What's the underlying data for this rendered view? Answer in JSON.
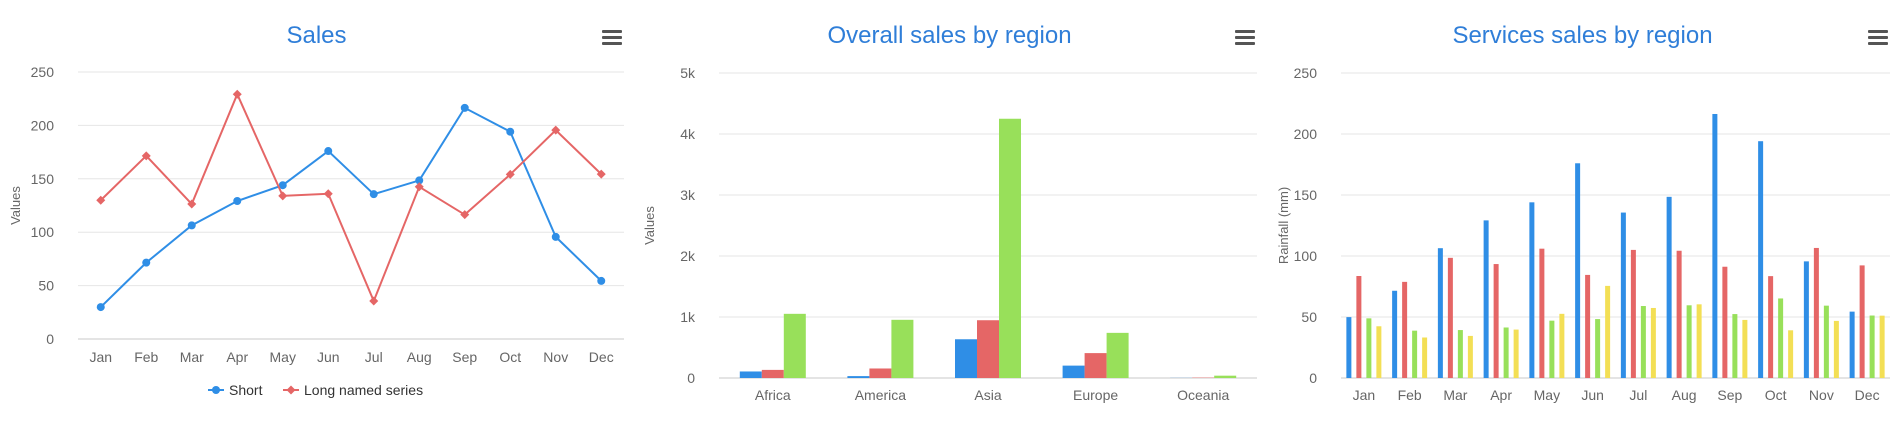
{
  "colors": {
    "blue": "#2f8ee6",
    "red": "#e56666",
    "green": "#98e05a",
    "yellow": "#f3df55",
    "title": "#2f7ed8"
  },
  "chart_data": [
    {
      "type": "line",
      "title": "Sales",
      "ylabel": "Values",
      "ylim": [
        0,
        250
      ],
      "yticks": [
        "0",
        "50",
        "100",
        "150",
        "200",
        "250"
      ],
      "categories": [
        "Jan",
        "Feb",
        "Mar",
        "Apr",
        "May",
        "Jun",
        "Jul",
        "Aug",
        "Sep",
        "Oct",
        "Nov",
        "Dec"
      ],
      "legend": "bottom-center",
      "grid": true,
      "series": [
        {
          "name": "Short",
          "color": "#2f8ee6",
          "marker": "circle",
          "values": [
            29.9,
            71.5,
            106.4,
            129.2,
            144.0,
            176.0,
            135.6,
            148.5,
            216.4,
            194.1,
            95.6,
            54.4
          ]
        },
        {
          "name": "Long named series",
          "color": "#e56666",
          "marker": "diamond",
          "values": [
            129.9,
            171.5,
            126.4,
            229.2,
            134.0,
            136.0,
            35.6,
            142.5,
            116.4,
            154.1,
            195.6,
            154.4
          ]
        }
      ]
    },
    {
      "type": "bar",
      "title": "Overall sales by region",
      "ylabel": "Values",
      "ylim": [
        0,
        5000
      ],
      "yticks": [
        "0",
        "1k",
        "2k",
        "3k",
        "4k",
        "5k"
      ],
      "categories": [
        "Africa",
        "America",
        "Asia",
        "Europe",
        "Oceania"
      ],
      "grid": true,
      "series": [
        {
          "color": "#2f8ee6",
          "values": [
            107,
            31,
            635,
            203,
            2
          ]
        },
        {
          "color": "#e56666",
          "values": [
            133,
            156,
            947,
            408,
            6
          ]
        },
        {
          "color": "#98e05a",
          "values": [
            1052,
            954,
            4250,
            740,
            38
          ]
        }
      ]
    },
    {
      "type": "bar",
      "title": "Services sales by region",
      "ylabel": "Rainfall (mm)",
      "ylim": [
        0,
        250
      ],
      "yticks": [
        "0",
        "50",
        "100",
        "150",
        "200",
        "250"
      ],
      "categories": [
        "Jan",
        "Feb",
        "Mar",
        "Apr",
        "May",
        "Jun",
        "Jul",
        "Aug",
        "Sep",
        "Oct",
        "Nov",
        "Dec"
      ],
      "grid": true,
      "series": [
        {
          "color": "#2f8ee6",
          "values": [
            49.9,
            71.5,
            106.4,
            129.2,
            144.0,
            176.0,
            135.6,
            148.5,
            216.4,
            194.1,
            95.6,
            54.4
          ]
        },
        {
          "color": "#e56666",
          "values": [
            83.6,
            78.8,
            98.5,
            93.4,
            106.0,
            84.5,
            105.0,
            104.3,
            91.2,
            83.5,
            106.6,
            92.3
          ]
        },
        {
          "color": "#98e05a",
          "values": [
            48.9,
            38.8,
            39.3,
            41.4,
            47.0,
            48.3,
            59.0,
            59.6,
            52.4,
            65.2,
            59.3,
            51.2
          ]
        },
        {
          "color": "#f3df55",
          "values": [
            42.4,
            33.2,
            34.5,
            39.7,
            52.6,
            75.5,
            57.4,
            60.4,
            47.6,
            39.1,
            46.8,
            51.1
          ]
        }
      ]
    }
  ]
}
